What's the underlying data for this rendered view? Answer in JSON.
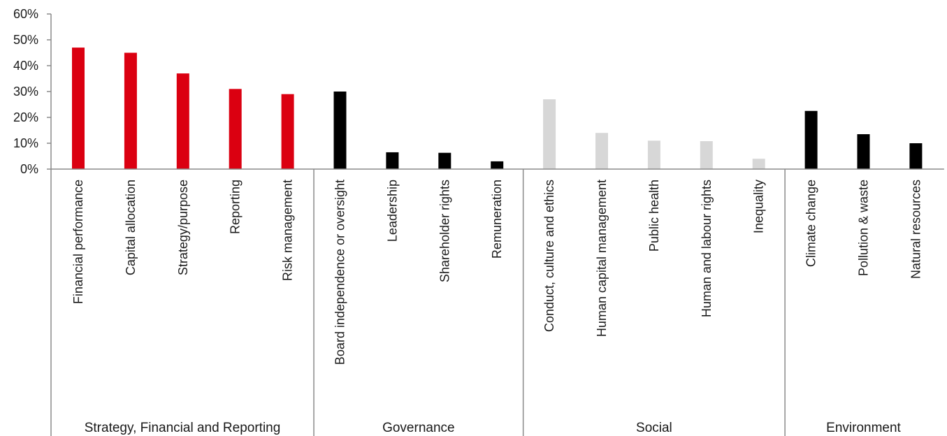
{
  "chart_data": {
    "type": "bar",
    "ylim": [
      0,
      60
    ],
    "yticks": [
      0,
      10,
      20,
      30,
      40,
      50,
      60
    ],
    "ytick_labels": [
      "0%",
      "10%",
      "20%",
      "30%",
      "40%",
      "50%",
      "60%"
    ],
    "grid": false,
    "legend": "none",
    "categories": [
      "Financial performance",
      "Capital allocation",
      "Strategy/purpose",
      "Reporting",
      "Risk management",
      "Board independence or oversight",
      "Leadership",
      "Shareholder rights",
      "Remuneration",
      "Conduct, culture and ethics",
      "Human capital management",
      "Public health",
      "Human and labour rights",
      "Inequality",
      "Climate change",
      "Pollution & waste",
      "Natural resources"
    ],
    "values": [
      47,
      45,
      37,
      31,
      29,
      30,
      6.5,
      6.3,
      3,
      27,
      14,
      11,
      10.8,
      4,
      22.5,
      13.5,
      10
    ],
    "groups": [
      {
        "name": "Strategy, Financial and Reporting",
        "start": 0,
        "count": 5,
        "color": "#db0011"
      },
      {
        "name": "Governance",
        "start": 5,
        "count": 4,
        "color": "#000000"
      },
      {
        "name": "Social",
        "start": 9,
        "count": 5,
        "color": "#d7d7d7"
      },
      {
        "name": "Environment",
        "start": 14,
        "count": 3,
        "color": "#000000"
      }
    ]
  }
}
